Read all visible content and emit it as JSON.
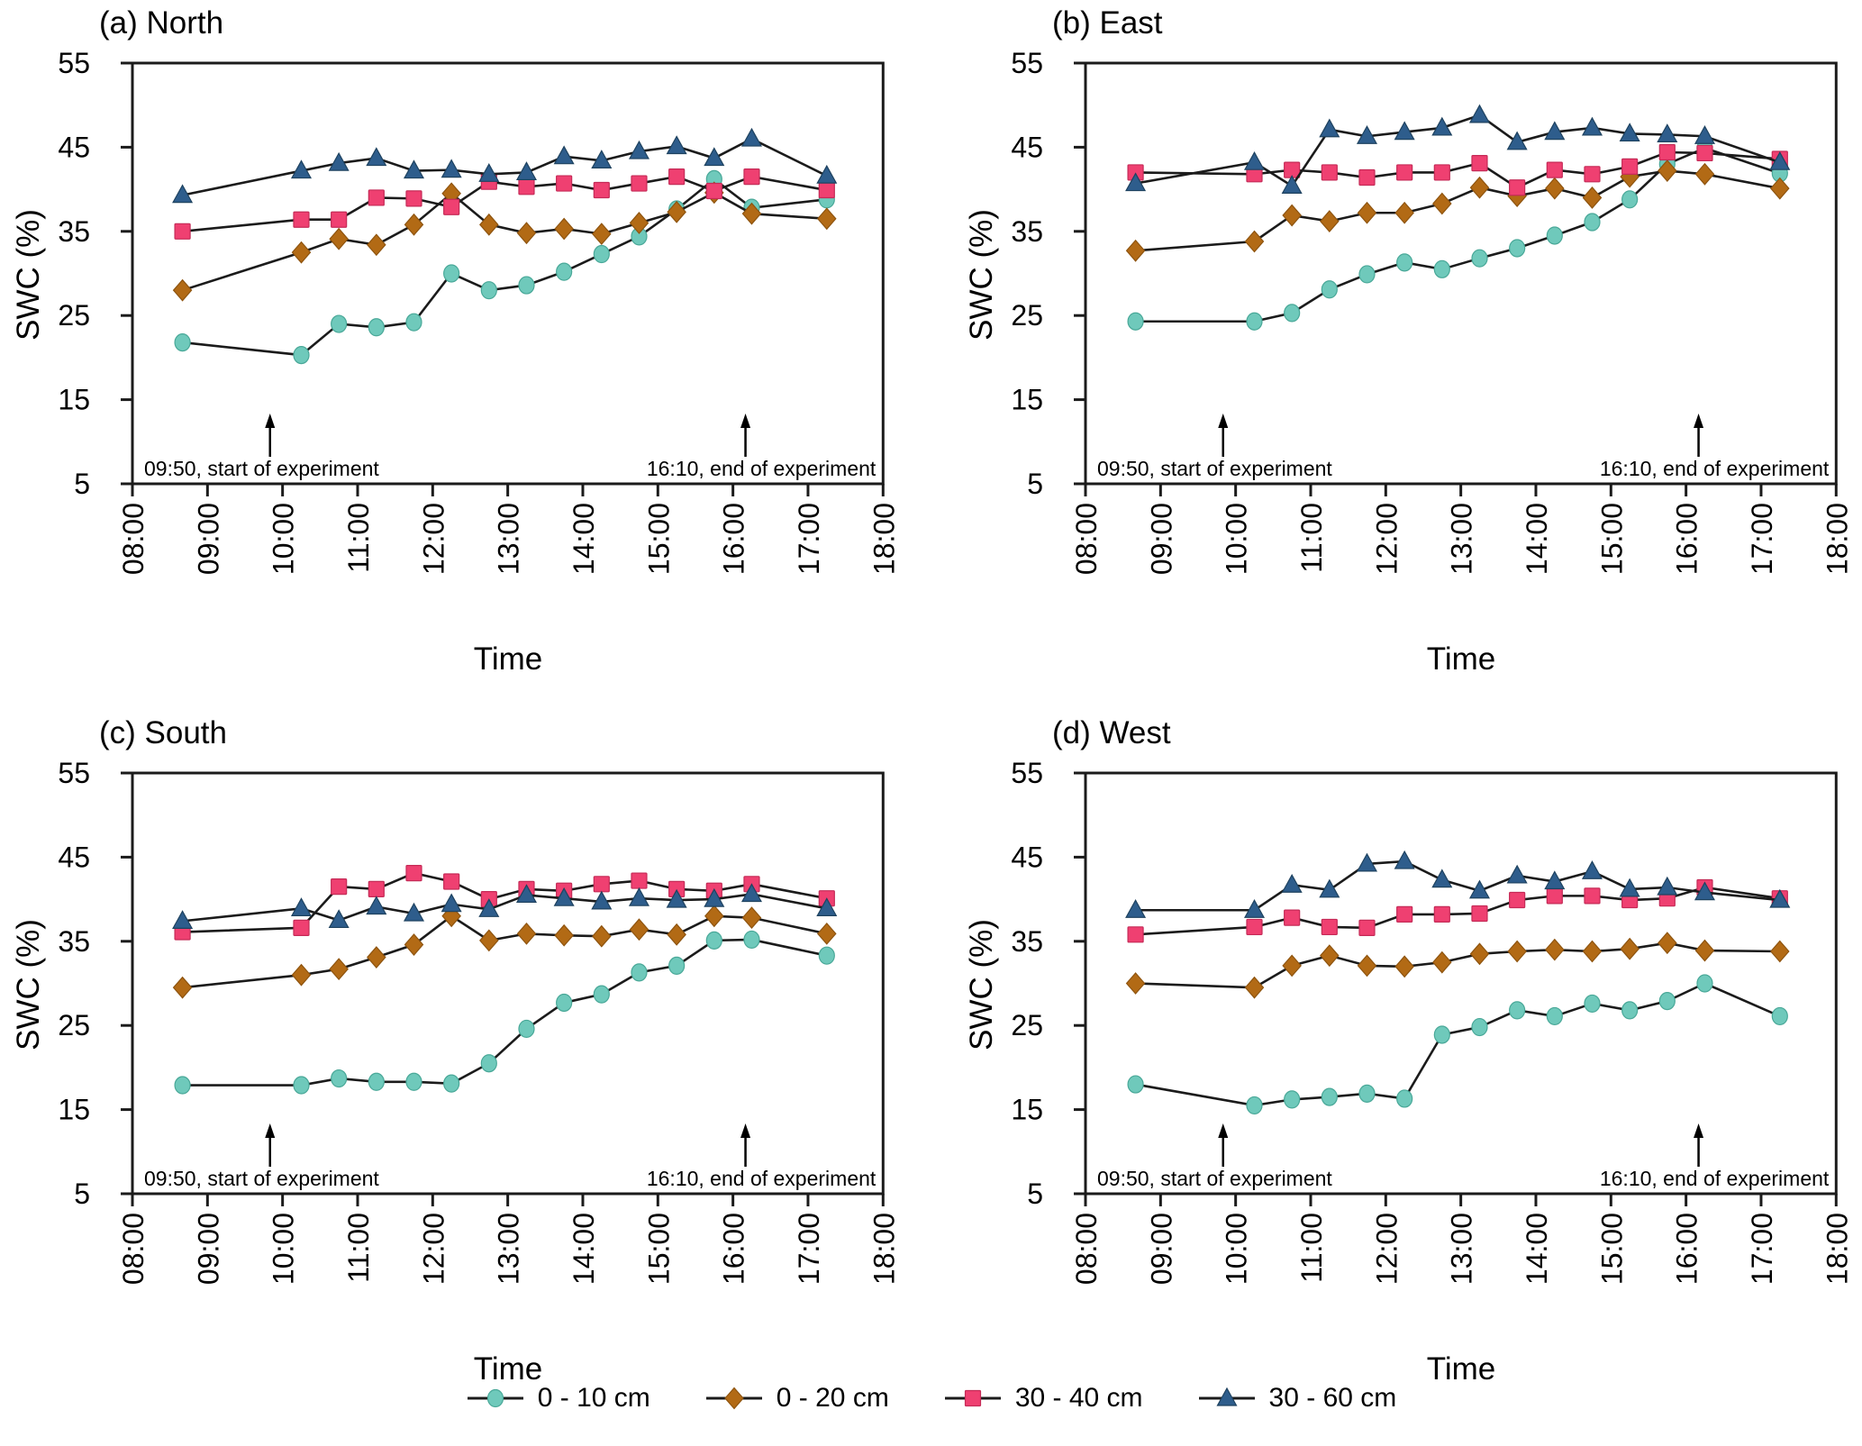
{
  "figure": {
    "background": "#ffffff",
    "line_color": "#1b1b1b"
  },
  "axes": {
    "xlim_hours": [
      8,
      18
    ],
    "ylim": [
      5,
      55
    ],
    "y_ticks": [
      5,
      15,
      25,
      35,
      45,
      55
    ],
    "x_tick_labels": [
      "08:00",
      "09:00",
      "10:00",
      "11:00",
      "12:00",
      "13:00",
      "14:00",
      "15:00",
      "16:00",
      "17:00",
      "18:00"
    ],
    "grid": "off",
    "x_tick_label_rotation": -90
  },
  "annotations": [
    {
      "label": "09:50, start of experiment",
      "hour": 9.833,
      "align": "left"
    },
    {
      "label": "16:10, end of experiment",
      "hour": 16.167,
      "align": "right"
    }
  ],
  "legend": {
    "position": "bottom-center",
    "items": [
      {
        "label": "0 - 10 cm",
        "marker": "circle",
        "color": "#6FC9BB"
      },
      {
        "label": "0 - 20 cm",
        "marker": "diamond",
        "color": "#B26A15"
      },
      {
        "label": "30 - 40 cm",
        "marker": "square",
        "color": "#EF4071"
      },
      {
        "label": "30 - 60 cm",
        "marker": "triangle",
        "color": "#2E5D8C"
      }
    ]
  },
  "chart_data": [
    {
      "type": "line",
      "title": "(a) North",
      "xlabel": "Time",
      "ylabel": "SWC (%)",
      "x_times": [
        "08:40",
        "10:15",
        "10:45",
        "11:15",
        "11:45",
        "12:15",
        "12:45",
        "13:15",
        "13:45",
        "14:15",
        "14:45",
        "15:15",
        "15:45",
        "16:15",
        "17:15"
      ],
      "x_hours": [
        8.667,
        10.25,
        10.75,
        11.25,
        11.75,
        12.25,
        12.75,
        13.25,
        13.75,
        14.25,
        14.75,
        15.25,
        15.75,
        16.25,
        17.25
      ],
      "series": [
        {
          "name": "0 - 10 cm",
          "marker": "circle",
          "color": "#6FC9BB",
          "values": [
            21.8,
            20.3,
            24.0,
            23.6,
            24.2,
            30.0,
            28.0,
            28.6,
            30.2,
            32.3,
            34.4,
            37.6,
            41.2,
            37.8,
            38.8
          ]
        },
        {
          "name": "0 - 20 cm",
          "marker": "diamond",
          "color": "#B26A15",
          "values": [
            28.0,
            32.5,
            34.1,
            33.4,
            35.8,
            39.5,
            35.8,
            34.8,
            35.3,
            34.7,
            36.0,
            37.3,
            39.6,
            37.1,
            36.5
          ]
        },
        {
          "name": "30 - 40 cm",
          "marker": "square",
          "color": "#EF4071",
          "values": [
            35.0,
            36.4,
            36.4,
            39.0,
            38.9,
            37.9,
            40.9,
            40.3,
            40.7,
            39.9,
            40.7,
            41.5,
            39.8,
            41.5,
            39.9
          ]
        },
        {
          "name": "30 - 60 cm",
          "marker": "triangle",
          "color": "#2E5D8C",
          "values": [
            39.3,
            42.2,
            43.1,
            43.7,
            42.2,
            42.3,
            41.8,
            42.0,
            43.9,
            43.4,
            44.5,
            45.1,
            43.7,
            46.0,
            41.6
          ]
        }
      ]
    },
    {
      "type": "line",
      "title": "(b) East",
      "xlabel": "Time",
      "ylabel": "SWC (%)",
      "x_times": [
        "08:40",
        "10:15",
        "10:45",
        "11:15",
        "11:45",
        "12:15",
        "12:45",
        "13:15",
        "13:45",
        "14:15",
        "14:45",
        "15:15",
        "15:45",
        "16:15",
        "17:15"
      ],
      "x_hours": [
        8.667,
        10.25,
        10.75,
        11.25,
        11.75,
        12.25,
        12.75,
        13.25,
        13.75,
        14.25,
        14.75,
        15.25,
        15.75,
        16.25,
        17.25
      ],
      "series": [
        {
          "name": "0 - 10 cm",
          "marker": "circle",
          "color": "#6FC9BB",
          "values": [
            24.3,
            24.3,
            25.3,
            28.1,
            29.9,
            31.3,
            30.5,
            31.8,
            33.0,
            34.5,
            36.1,
            38.8,
            43.0,
            44.9,
            41.9
          ]
        },
        {
          "name": "0 - 20 cm",
          "marker": "diamond",
          "color": "#B26A15",
          "values": [
            32.7,
            33.8,
            36.9,
            36.2,
            37.2,
            37.2,
            38.3,
            40.2,
            39.2,
            40.1,
            39.0,
            41.5,
            42.2,
            41.8,
            40.1
          ]
        },
        {
          "name": "30 - 40 cm",
          "marker": "square",
          "color": "#EF4071",
          "values": [
            42.0,
            41.8,
            42.3,
            42.0,
            41.4,
            42.0,
            42.0,
            43.1,
            40.2,
            42.3,
            41.8,
            42.7,
            44.4,
            44.3,
            43.6
          ]
        },
        {
          "name": "30 - 60 cm",
          "marker": "triangle",
          "color": "#2E5D8C",
          "values": [
            40.7,
            43.2,
            40.4,
            47.1,
            46.3,
            46.8,
            47.3,
            48.8,
            45.6,
            46.8,
            47.3,
            46.6,
            46.5,
            46.3,
            43.2
          ]
        }
      ]
    },
    {
      "type": "line",
      "title": "(c) South",
      "xlabel": "Time",
      "ylabel": "SWC (%)",
      "x_times": [
        "08:40",
        "10:15",
        "10:45",
        "11:15",
        "11:45",
        "12:15",
        "12:45",
        "13:15",
        "13:45",
        "14:15",
        "14:45",
        "15:15",
        "15:45",
        "16:15",
        "17:15"
      ],
      "x_hours": [
        8.667,
        10.25,
        10.75,
        11.25,
        11.75,
        12.25,
        12.75,
        13.25,
        13.75,
        14.25,
        14.75,
        15.25,
        15.75,
        16.25,
        17.25
      ],
      "series": [
        {
          "name": "0 - 10 cm",
          "marker": "circle",
          "color": "#6FC9BB",
          "values": [
            17.9,
            17.9,
            18.7,
            18.3,
            18.3,
            18.1,
            20.5,
            24.6,
            27.7,
            28.7,
            31.3,
            32.1,
            35.1,
            35.2,
            33.3
          ]
        },
        {
          "name": "0 - 20 cm",
          "marker": "diamond",
          "color": "#B26A15",
          "values": [
            29.5,
            31.0,
            31.7,
            33.1,
            34.6,
            38.0,
            35.1,
            35.9,
            35.7,
            35.6,
            36.4,
            35.8,
            38.0,
            37.8,
            35.9
          ]
        },
        {
          "name": "30 - 40 cm",
          "marker": "square",
          "color": "#EF4071",
          "values": [
            36.1,
            36.6,
            41.5,
            41.2,
            43.1,
            42.1,
            40.0,
            41.2,
            41.0,
            41.8,
            42.2,
            41.2,
            41.0,
            41.8,
            40.1
          ]
        },
        {
          "name": "30 - 60 cm",
          "marker": "triangle",
          "color": "#2E5D8C",
          "values": [
            37.4,
            38.9,
            37.5,
            39.1,
            38.3,
            39.4,
            38.8,
            40.5,
            40.1,
            39.7,
            40.1,
            39.9,
            40.0,
            40.6,
            38.9
          ]
        }
      ]
    },
    {
      "type": "line",
      "title": "(d) West",
      "xlabel": "Time",
      "ylabel": "SWC (%)",
      "x_times": [
        "08:40",
        "10:15",
        "10:45",
        "11:15",
        "11:45",
        "12:15",
        "12:45",
        "13:15",
        "13:45",
        "14:15",
        "14:45",
        "15:15",
        "15:45",
        "16:15",
        "17:15"
      ],
      "x_hours": [
        8.667,
        10.25,
        10.75,
        11.25,
        11.75,
        12.25,
        12.75,
        13.25,
        13.75,
        14.25,
        14.75,
        15.25,
        15.75,
        16.25,
        17.25
      ],
      "series": [
        {
          "name": "0 - 10 cm",
          "marker": "circle",
          "color": "#6FC9BB",
          "values": [
            18.0,
            15.5,
            16.2,
            16.5,
            16.9,
            16.3,
            23.9,
            24.8,
            26.8,
            26.1,
            27.6,
            26.8,
            27.9,
            30.0,
            26.1
          ]
        },
        {
          "name": "0 - 20 cm",
          "marker": "diamond",
          "color": "#B26A15",
          "values": [
            30.0,
            29.5,
            32.1,
            33.3,
            32.1,
            32.0,
            32.5,
            33.5,
            33.8,
            34.0,
            33.8,
            34.1,
            34.8,
            33.9,
            33.8
          ]
        },
        {
          "name": "30 - 40 cm",
          "marker": "square",
          "color": "#EF4071",
          "values": [
            35.8,
            36.7,
            37.8,
            36.7,
            36.6,
            38.2,
            38.2,
            38.3,
            39.9,
            40.4,
            40.4,
            39.9,
            40.1,
            41.4,
            40.1
          ]
        },
        {
          "name": "30 - 60 cm",
          "marker": "triangle",
          "color": "#2E5D8C",
          "values": [
            38.7,
            38.7,
            41.7,
            41.1,
            44.2,
            44.5,
            42.3,
            41.0,
            42.8,
            42.1,
            43.3,
            41.2,
            41.4,
            40.8,
            39.9
          ]
        }
      ]
    }
  ]
}
